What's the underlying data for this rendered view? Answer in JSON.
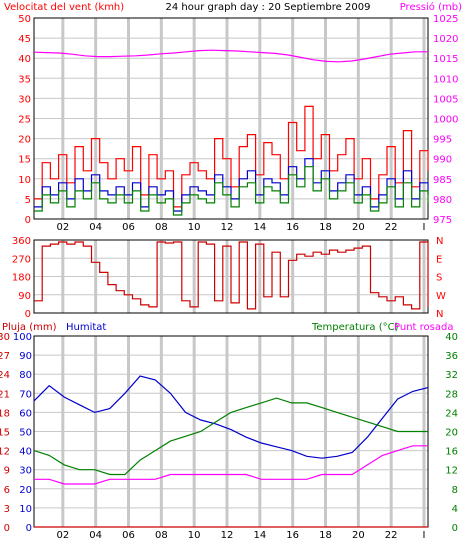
{
  "colors": {
    "frame": "#000000",
    "grid": "#c8c8c8",
    "wind": "#ff0000",
    "wind_avg": "#0000cc",
    "gust_green": "#008000",
    "pressure": "#ff00ff",
    "direction": "#cc0000",
    "rain": "#cc0000",
    "humidity": "#0000cc",
    "temperature": "#008000",
    "dewpoint": "#ff00ff"
  },
  "chart_data": [
    {
      "type": "line",
      "title": "24 hour graph day : 20 Septiembre 2009",
      "left_axis_label": "Velocitat del vent (kmh)",
      "right_axis_label": "Pressió (mb)",
      "x_ticks": [
        "02",
        "04",
        "06",
        "08",
        "10",
        "12",
        "14",
        "16",
        "18",
        "20",
        "22",
        "I"
      ],
      "ylim_left": [
        0,
        50
      ],
      "ytick_left": [
        "0",
        "5",
        "10",
        "15",
        "20",
        "25",
        "30",
        "35",
        "40",
        "45",
        "50"
      ],
      "ylim_right": [
        975,
        1025
      ],
      "ytick_right": [
        "975",
        "980",
        "985",
        "990",
        "995",
        "1000",
        "1005",
        "1010",
        "1015",
        "1020",
        "1025"
      ],
      "series": [
        {
          "key": "pressure",
          "axis": "right",
          "values": [
            1016.5,
            1016.4,
            1016.3,
            1016,
            1015.6,
            1015.4,
            1015.4,
            1015.5,
            1015.6,
            1015.8,
            1016.1,
            1016.3,
            1016.6,
            1016.9,
            1017,
            1016.9,
            1016.8,
            1016.6,
            1016.4,
            1016.2,
            1015.8,
            1015.2,
            1014.6,
            1014.2,
            1014.1,
            1014.3,
            1014.8,
            1015.4,
            1016,
            1016.3,
            1016.6,
            1016.6
          ]
        },
        {
          "key": "wind",
          "axis": "left",
          "values": [
            5,
            14,
            10,
            16,
            9,
            18,
            12,
            20,
            14,
            10,
            15,
            12,
            18,
            6,
            16,
            10,
            12,
            3,
            11,
            14,
            12,
            10,
            20,
            15,
            8,
            18,
            21,
            11,
            19,
            16,
            10,
            24,
            17,
            28,
            15,
            21,
            12,
            16,
            20,
            10,
            15,
            5,
            11,
            18,
            9,
            22,
            8,
            17,
            12
          ]
        },
        {
          "key": "wind_avg",
          "axis": "left",
          "values": [
            3,
            8,
            6,
            9,
            5,
            10,
            7,
            11,
            7,
            6,
            8,
            6,
            9,
            3,
            8,
            6,
            7,
            2,
            6,
            8,
            7,
            6,
            11,
            8,
            5,
            10,
            12,
            6,
            10,
            9,
            6,
            13,
            10,
            15,
            9,
            12,
            7,
            9,
            11,
            6,
            8,
            3,
            6,
            10,
            5,
            12,
            5,
            9,
            6
          ]
        },
        {
          "key": "gust_green",
          "axis": "left",
          "values": [
            2,
            6,
            4,
            7,
            3,
            7,
            5,
            9,
            5,
            4,
            6,
            4,
            7,
            2,
            6,
            4,
            5,
            1,
            4,
            6,
            5,
            4,
            9,
            6,
            3,
            8,
            9,
            4,
            8,
            7,
            4,
            11,
            8,
            13,
            7,
            10,
            5,
            7,
            9,
            4,
            6,
            2,
            4,
            8,
            3,
            9,
            3,
            7,
            4
          ]
        }
      ]
    },
    {
      "type": "line",
      "x_ticks": [
        "02",
        "04",
        "06",
        "08",
        "10",
        "12",
        "14",
        "16",
        "18",
        "20",
        "22",
        "I"
      ],
      "ylim_left": [
        0,
        360
      ],
      "ytick_left": [
        "0",
        "90",
        "180",
        "270",
        "360"
      ],
      "ytick_right": [
        "N",
        "W",
        "S",
        "E",
        "N"
      ],
      "series": [
        {
          "key": "direction",
          "axis": "left",
          "values": [
            60,
            330,
            340,
            350,
            340,
            350,
            330,
            250,
            200,
            140,
            110,
            90,
            70,
            40,
            30,
            350,
            345,
            350,
            60,
            30,
            350,
            340,
            60,
            330,
            50,
            350,
            20,
            340,
            80,
            300,
            80,
            260,
            290,
            280,
            300,
            290,
            310,
            300,
            310,
            320,
            330,
            100,
            80,
            60,
            80,
            40,
            20,
            350,
            30
          ]
        }
      ]
    },
    {
      "type": "line",
      "legend": [
        "Pluja (mm)",
        "Humitat",
        "Temperatura (°C)",
        "Punt rosada"
      ],
      "x_ticks": [
        "02",
        "04",
        "06",
        "08",
        "10",
        "12",
        "14",
        "16",
        "18",
        "20",
        "22",
        "I"
      ],
      "ytick_rain": [
        "0",
        "3",
        "6",
        "9",
        "12",
        "15",
        "18",
        "21",
        "24",
        "27",
        "30"
      ],
      "ytick_hum": [
        "0",
        "10",
        "20",
        "30",
        "40",
        "50",
        "60",
        "70",
        "80",
        "90",
        "100"
      ],
      "ytick_temp": [
        "0",
        "4",
        "8",
        "12",
        "16",
        "20",
        "24",
        "28",
        "32",
        "36",
        "40"
      ],
      "ylim_rain": [
        0,
        30
      ],
      "ylim_hum": [
        0,
        100
      ],
      "ylim_temp": [
        0,
        40
      ],
      "series": [
        {
          "key": "rain",
          "axis": "rain",
          "values": [
            0,
            0,
            0,
            0,
            0,
            0,
            0,
            0,
            0,
            0,
            0,
            0,
            0,
            0,
            0,
            0,
            0,
            0,
            0,
            0,
            0,
            0,
            0,
            0,
            0
          ]
        },
        {
          "key": "humidity",
          "axis": "hum",
          "values": [
            66,
            74,
            68,
            64,
            60,
            62,
            70,
            79,
            77,
            70,
            60,
            56,
            54,
            51,
            47,
            44,
            42,
            40,
            37,
            36,
            37,
            39,
            47,
            57,
            67,
            71,
            73
          ]
        },
        {
          "key": "temperature",
          "axis": "temp",
          "values": [
            16,
            15,
            13,
            12,
            12,
            11,
            11,
            14,
            16,
            18,
            19,
            20,
            22,
            24,
            25,
            26,
            27,
            26,
            26,
            25,
            24,
            23,
            22,
            21,
            20,
            20,
            20
          ]
        },
        {
          "key": "dewpoint",
          "axis": "temp",
          "values": [
            10,
            10,
            9,
            9,
            9,
            10,
            10,
            10,
            10,
            11,
            11,
            11,
            11,
            11,
            11,
            10,
            10,
            10,
            10,
            11,
            11,
            11,
            13,
            15,
            16,
            17,
            17
          ]
        }
      ]
    }
  ]
}
